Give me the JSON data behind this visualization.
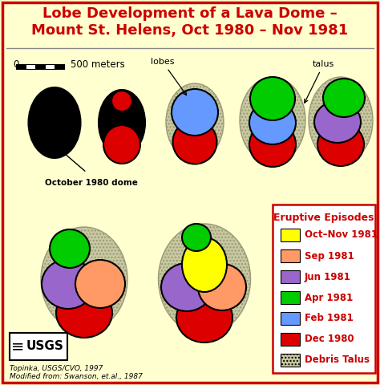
{
  "title": "Lobe Development of a Lava Dome –\nMount St. Helens, Oct 1980 – Nov 1981",
  "title_color": "#cc0000",
  "bg_color": "#ffffd0",
  "border_color": "#cc0000",
  "colors": {
    "black": "#000000",
    "red": "#dd0000",
    "blue": "#6699ff",
    "green": "#00cc00",
    "purple": "#9966cc",
    "orange": "#ff9966",
    "yellow": "#ffff00",
    "talus": "#c8c8a0"
  },
  "legend_entries": [
    {
      "label": "Oct–Nov 1981",
      "color": "#ffff00"
    },
    {
      "label": "Sep 1981",
      "color": "#ff9966"
    },
    {
      "label": "Jun 1981",
      "color": "#9966cc"
    },
    {
      "label": "Apr 1981",
      "color": "#00cc00"
    },
    {
      "label": "Feb 1981",
      "color": "#6699ff"
    },
    {
      "label": "Dec 1980",
      "color": "#dd0000"
    },
    {
      "label": "Debris Talus",
      "color": "#c8c8a0"
    }
  ],
  "footer1": "Topinka, USGS/CVO, 1997",
  "footer2": "Modified from: Swanson, et.al., 1987"
}
